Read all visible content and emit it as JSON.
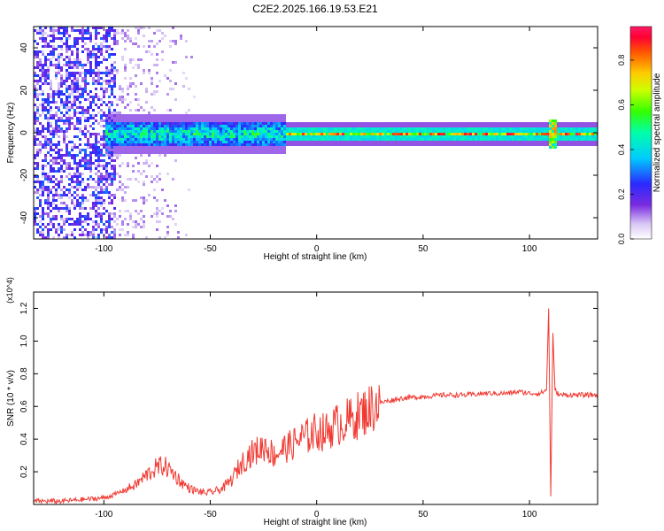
{
  "figure": {
    "title": "C2E2.2025.166.19.53.E21"
  },
  "colors": {
    "snr_line": "#f03a32",
    "axis": "#000000",
    "background": "#ffffff"
  },
  "chart_data": [
    {
      "type": "heatmap",
      "title": "C2E2.2025.166.19.53.E21",
      "xlabel": "Height of straight line (km)",
      "ylabel": "Frequency (Hz)",
      "xlim": [
        -133,
        132
      ],
      "ylim": [
        -50,
        50
      ],
      "xticks": [
        -100,
        -50,
        0,
        50,
        100
      ],
      "yticks": [
        -40,
        -20,
        0,
        20,
        40
      ],
      "colorbar": {
        "label": "Normalized spectral amplitude",
        "range": [
          0.0,
          0.95
        ],
        "ticks": [
          "0.0",
          "0.2",
          "0.4",
          "0.6",
          "0.8"
        ],
        "colormap": "rainbow (white-violet-blue-cyan-green-yellow-orange-red-magenta)"
      },
      "features": [
        {
          "x_range": [
            -133,
            -95
          ],
          "description": "broadband scattered noise across all frequencies",
          "amplitude": [
            0.05,
            0.3
          ]
        },
        {
          "x_range": [
            -100,
            -15
          ],
          "freq_center": 0,
          "freq_halfwidth": 6,
          "amplitude": [
            0.3,
            0.6
          ]
        },
        {
          "x_range": [
            -15,
            132
          ],
          "freq_center": 0,
          "freq_halfwidth": 3,
          "amplitude": [
            0.5,
            0.95
          ]
        },
        {
          "x_range": [
            108,
            112
          ],
          "description": "disturbance near 110 km",
          "amplitude": [
            0.4,
            0.8
          ]
        }
      ]
    },
    {
      "type": "line",
      "xlabel": "Height of straight line (km)",
      "ylabel": "SNR (10 * v/v)",
      "y_multiplier": "(x10^4)",
      "xlim": [
        -133,
        132
      ],
      "ylim": [
        0.0,
        1.3
      ],
      "xticks": [
        -100,
        -50,
        0,
        50,
        100
      ],
      "yticks": [
        0.2,
        0.4,
        0.6,
        0.8,
        1.0,
        1.2
      ],
      "series": [
        {
          "color": "#f03a32",
          "x": [
            -133,
            -120,
            -110,
            -100,
            -95,
            -90,
            -85,
            -80,
            -76,
            -72,
            -68,
            -64,
            -60,
            -56,
            -52,
            -48,
            -44,
            -40,
            -36,
            -32,
            -28,
            -24,
            -20,
            -16,
            -12,
            -8,
            -4,
            0,
            4,
            8,
            12,
            16,
            20,
            24,
            28,
            32,
            36,
            40,
            50,
            60,
            70,
            80,
            90,
            95,
            100,
            105,
            108,
            109,
            110,
            111,
            112,
            114,
            118,
            125,
            132
          ],
          "y": [
            0.02,
            0.02,
            0.03,
            0.04,
            0.06,
            0.09,
            0.12,
            0.18,
            0.22,
            0.24,
            0.2,
            0.14,
            0.1,
            0.08,
            0.07,
            0.08,
            0.1,
            0.15,
            0.24,
            0.3,
            0.33,
            0.36,
            0.3,
            0.34,
            0.36,
            0.4,
            0.42,
            0.45,
            0.44,
            0.48,
            0.5,
            0.52,
            0.55,
            0.58,
            0.61,
            0.63,
            0.64,
            0.65,
            0.66,
            0.67,
            0.67,
            0.68,
            0.68,
            0.69,
            0.68,
            0.68,
            0.7,
            1.2,
            0.05,
            1.05,
            0.7,
            0.67,
            0.67,
            0.67,
            0.67
          ]
        }
      ]
    }
  ]
}
